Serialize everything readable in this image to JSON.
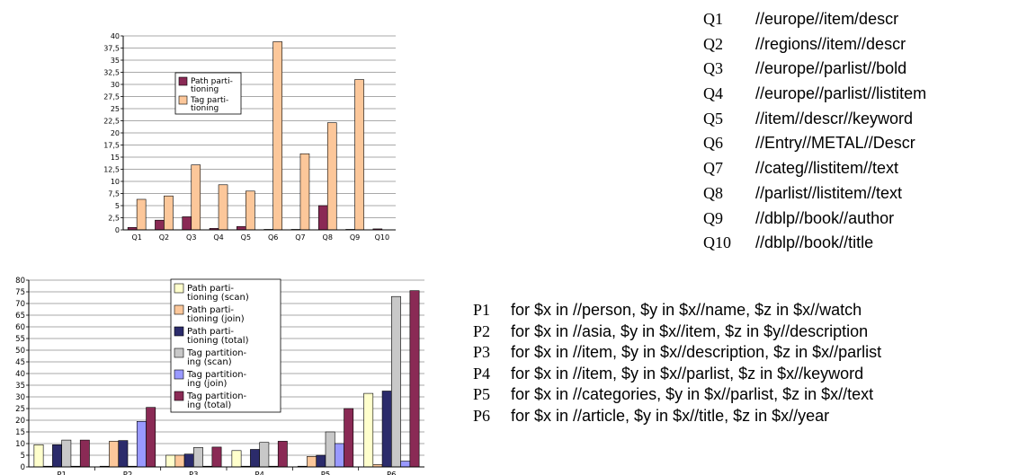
{
  "chart_data": [
    {
      "type": "bar",
      "categories": [
        "Q1",
        "Q2",
        "Q3",
        "Q4",
        "Q5",
        "Q6",
        "Q7",
        "Q8",
        "Q9",
        "Q10"
      ],
      "yticks": [
        "0",
        "2,5",
        "5",
        "7,5",
        "10",
        "12,5",
        "15",
        "17,5",
        "20",
        "22,5",
        "25",
        "27,5",
        "30",
        "32,5",
        "35",
        "37,5",
        "40"
      ],
      "ylim": [
        0,
        40
      ],
      "grid": true,
      "legend_position": "upper-left",
      "series": [
        {
          "name": "Path parti-\ntioning",
          "color": "#8a2a55",
          "values": [
            0.5,
            2.0,
            2.7,
            0.3,
            0.7,
            0.1,
            0.1,
            5.0,
            0.1,
            0.2
          ]
        },
        {
          "name": "Tag parti-\ntioning",
          "color": "#fcc79a",
          "values": [
            6.3,
            7.0,
            13.4,
            9.3,
            8.0,
            38.8,
            15.7,
            22.1,
            31.0,
            0.0
          ]
        }
      ]
    },
    {
      "type": "bar",
      "categories": [
        "P1",
        "P2",
        "P3",
        "P4",
        "P5",
        "P6"
      ],
      "yticks": [
        "0",
        "5",
        "10",
        "15",
        "20",
        "25",
        "30",
        "35",
        "40",
        "45",
        "50",
        "55",
        "60",
        "65",
        "70",
        "75",
        "80"
      ],
      "ylim": [
        0,
        80
      ],
      "grid": true,
      "legend_position": "upper-center",
      "series": [
        {
          "name": "Path parti-\ntioning (scan)",
          "color": "#ffffcc",
          "values": [
            9.5,
            0.3,
            5.0,
            7.0,
            0.3,
            31.5
          ]
        },
        {
          "name": "Path parti-\ntioning (join)",
          "color": "#fcc79a",
          "values": [
            0.3,
            11.0,
            5.0,
            0.3,
            4.5,
            1.0
          ]
        },
        {
          "name": "Path parti-\ntioning (total)",
          "color": "#2b2b6b",
          "values": [
            9.5,
            11.3,
            5.5,
            7.5,
            5.0,
            32.5
          ]
        },
        {
          "name": "Tag partition-\ning (scan)",
          "color": "#c8c8c8",
          "values": [
            11.5,
            0.3,
            8.3,
            10.5,
            15.0,
            73.0
          ]
        },
        {
          "name": "Tag partition-\ning (join)",
          "color": "#9999ff",
          "values": [
            0.3,
            19.5,
            0.3,
            0.3,
            10.0,
            2.5
          ]
        },
        {
          "name": "Tag partition-\ning (total)",
          "color": "#8a2a55",
          "values": [
            11.5,
            25.5,
            8.5,
            11.0,
            25.0,
            75.5
          ]
        }
      ]
    }
  ],
  "queries": [
    {
      "label": "Q1",
      "expr": "//europe//item/descr"
    },
    {
      "label": "Q2",
      "expr": "//regions//item//descr"
    },
    {
      "label": "Q3",
      "expr": "//europe//parlist//bold"
    },
    {
      "label": "Q4",
      "expr": "//europe//parlist//listitem"
    },
    {
      "label": "Q5",
      "expr": "//item//descr//keyword"
    },
    {
      "label": "Q6",
      "expr": "//Entry//METAL//Descr"
    },
    {
      "label": "Q7",
      "expr": "//categ//listitem//text"
    },
    {
      "label": "Q8",
      "expr": "//parlist//listitem//text"
    },
    {
      "label": "Q9",
      "expr": "//dblp//book//author"
    },
    {
      "label": "Q10",
      "expr": "//dblp//book//title"
    }
  ],
  "patterns": [
    {
      "label": "P1",
      "expr": "for $x in //person, $y in $x//name, $z in $x//watch"
    },
    {
      "label": "P2",
      "expr": "for $x in //asia, $y in $x//item, $z in $y//description"
    },
    {
      "label": "P3",
      "expr": "for $x in //item, $y in $x//description, $z in $x//parlist"
    },
    {
      "label": "P4",
      "expr": "for $x in //item, $y in $x//parlist, $z in $x//keyword"
    },
    {
      "label": "P5",
      "expr": "for $x in //categories, $y in $x//parlist, $z in $x//text"
    },
    {
      "label": "P6",
      "expr": "for $x in //article, $y in $x//title, $z in $x//year"
    }
  ]
}
